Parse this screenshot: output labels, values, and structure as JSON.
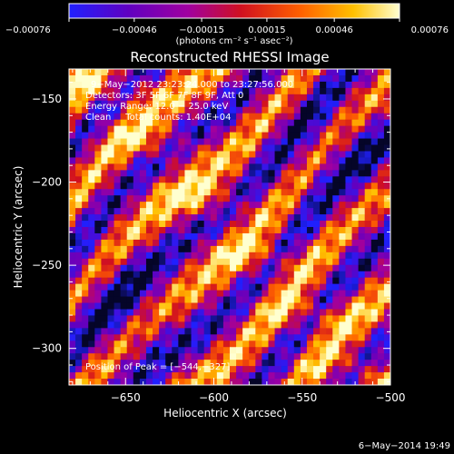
{
  "chart_data": {
    "type": "heatmap",
    "title": "Reconstructed RHESSI Image",
    "xlabel": "Heliocentric X (arcsec)",
    "ylabel": "Heliocentric Y (arcsec)",
    "xlim": [
      -682,
      -500
    ],
    "ylim": [
      -322,
      -132
    ],
    "xticks": [
      -650,
      -600,
      -550,
      -500
    ],
    "yticks": [
      -150,
      -200,
      -250,
      -300
    ],
    "xtick_labels": [
      "−650",
      "−600",
      "−550",
      "−500"
    ],
    "ytick_labels": [
      "−150",
      "−200",
      "−250",
      "−300"
    ],
    "colorbar": {
      "range": [
        -0.00076,
        0.00076
      ],
      "ticks": [
        -0.00076,
        -0.00046,
        -0.00015,
        0.00015,
        0.00046,
        0.00076
      ],
      "tick_labels": [
        "−0.00076",
        "−0.00046",
        "−0.00015",
        "0.00015",
        "0.00046",
        "0.00076"
      ],
      "unit_label": "(photons cm⁻² s⁻¹ asec⁻²)",
      "colormap": [
        "#2020ff",
        "#6000c0",
        "#a000a0",
        "#d01020",
        "#ff6000",
        "#ffc000",
        "#ffffd0"
      ]
    },
    "annotations": [
      "9−May−2012 23:23:24.000 to 23:27:56.000",
      "Detectors: 3F 5F 6F 7F 8F 9F, Att 0",
      "Energy Range: 12.0 − 25.0 keV",
      "Clean     Total counts: 1.40E+04"
    ],
    "peak_label": "Position of Peak = [−544,−327]",
    "peak": [
      -544,
      -327
    ]
  },
  "footer": {
    "timestamp": "6−May−2014 19:49"
  }
}
